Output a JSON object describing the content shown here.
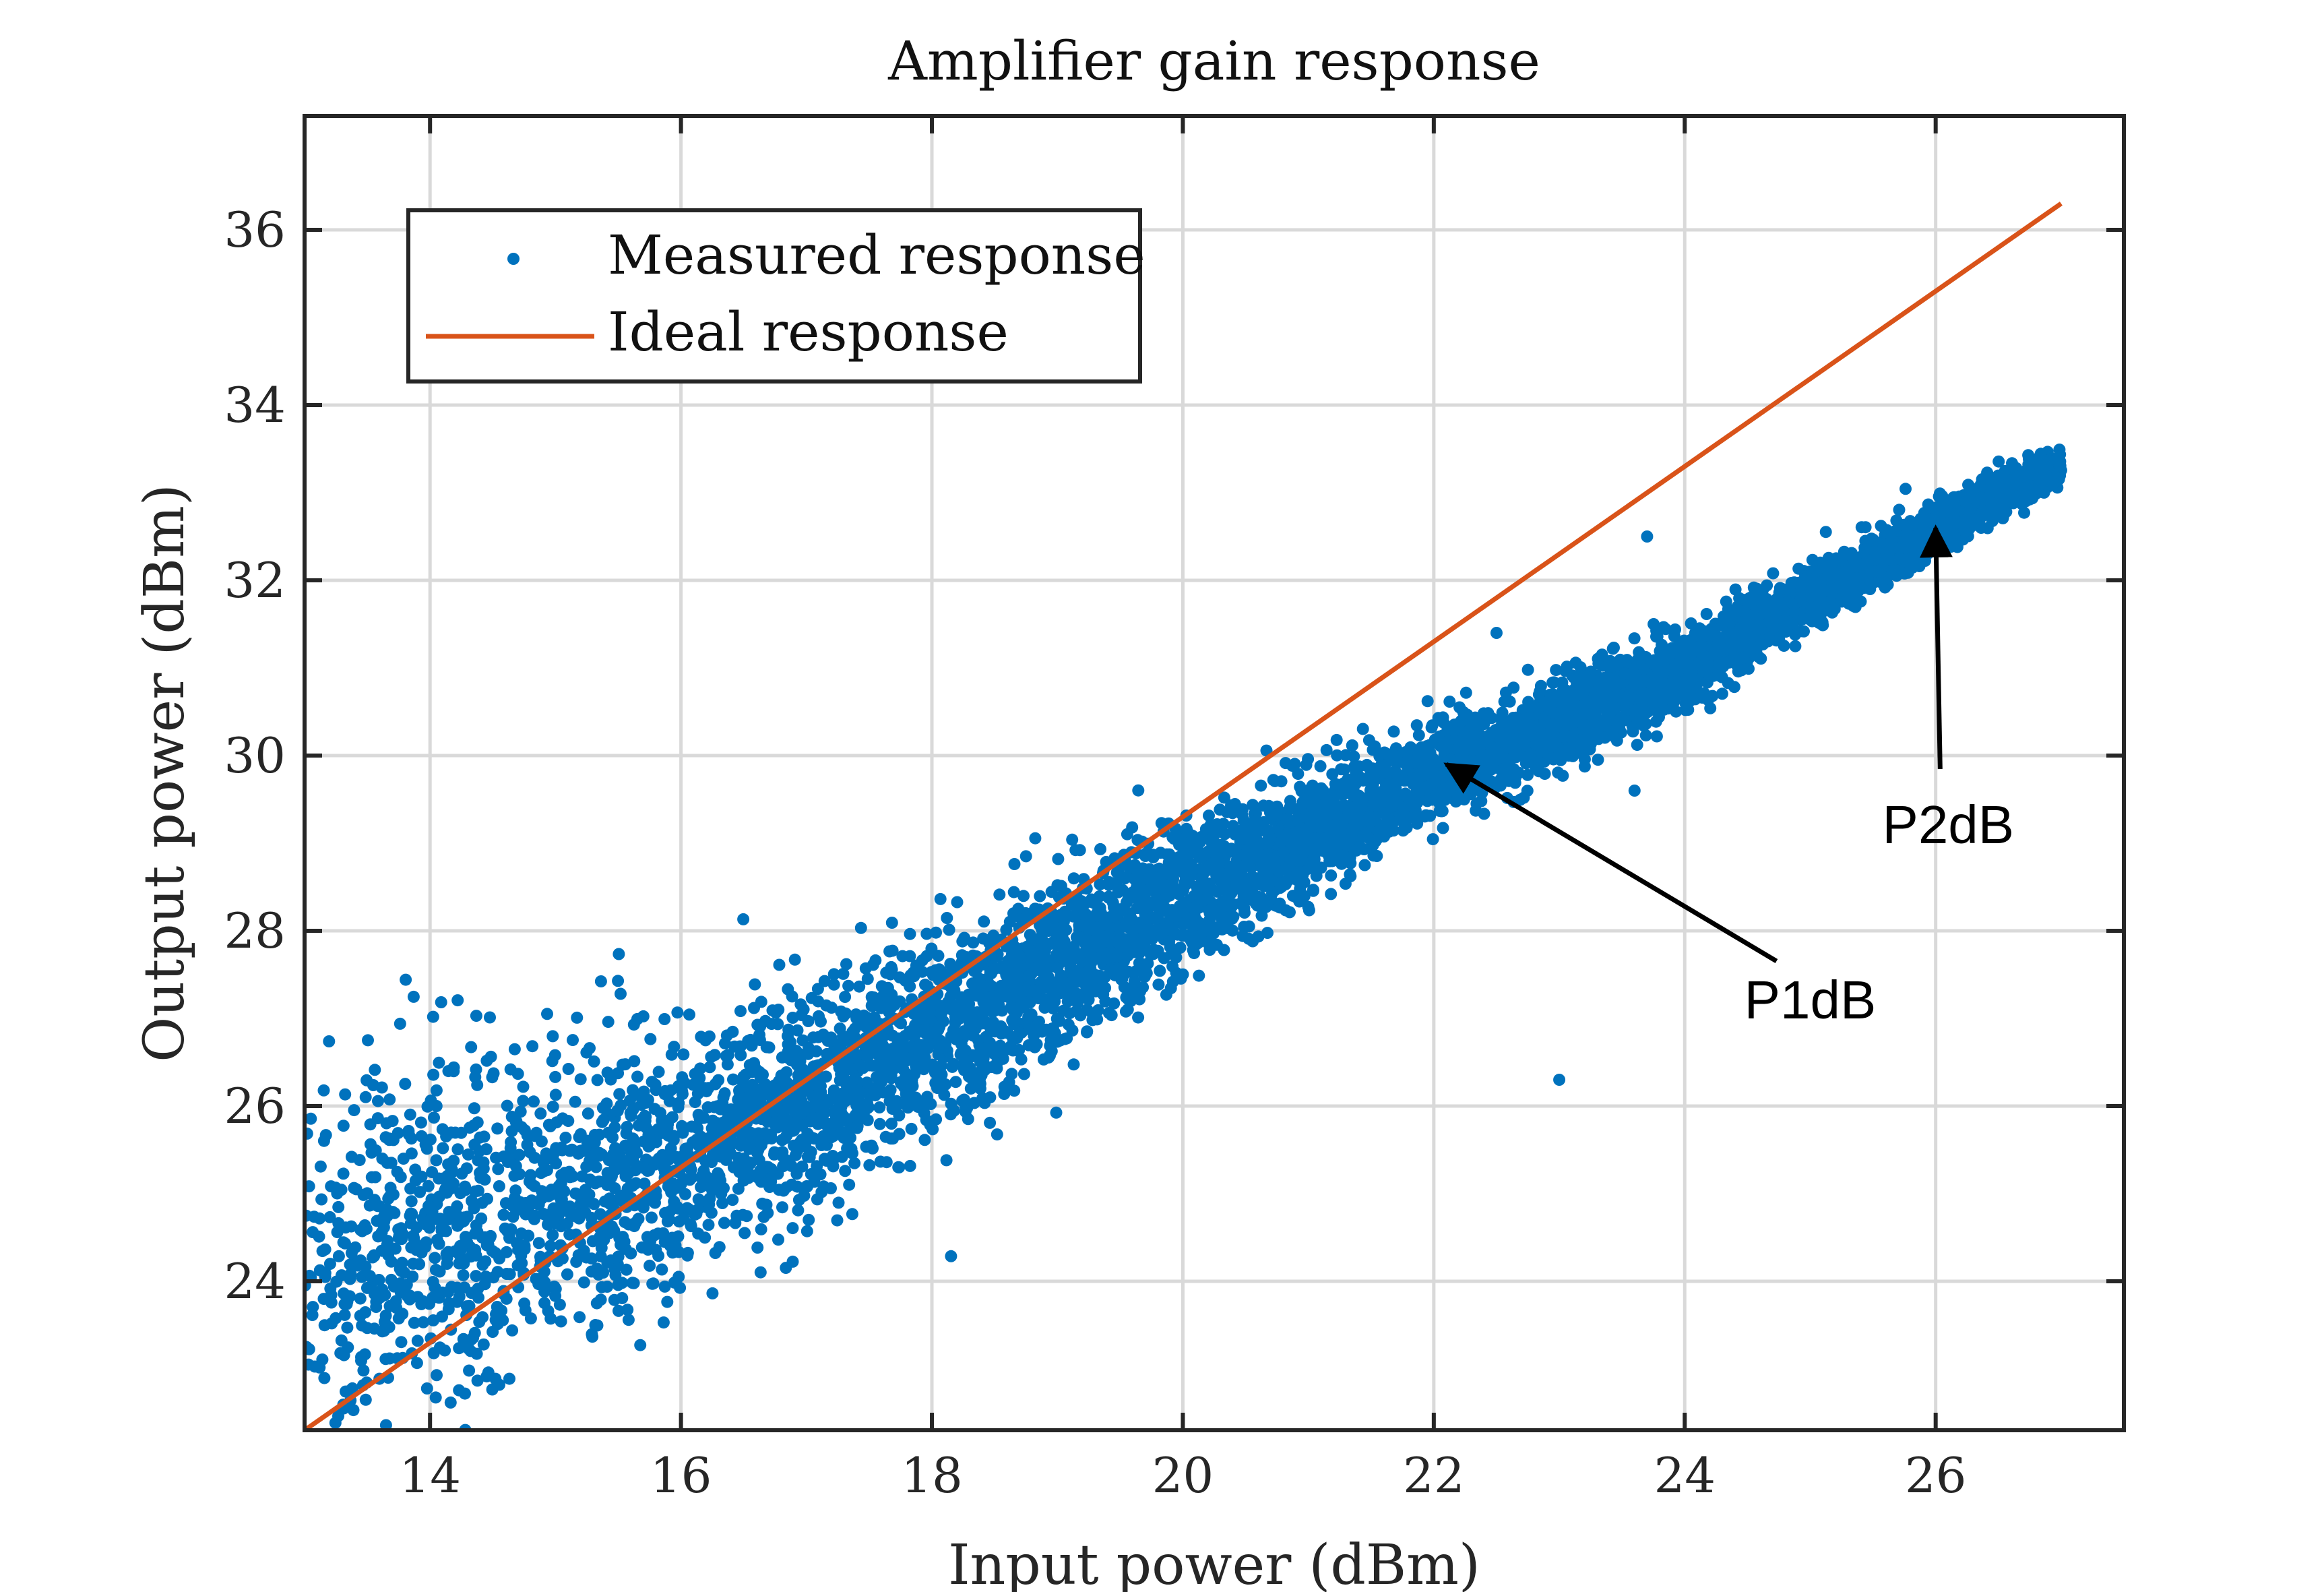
{
  "chart_data": {
    "type": "scatter",
    "title": "Amplifier gain response",
    "xlabel": "Input power (dBm)",
    "ylabel": "Output power (dBm)",
    "xlim": [
      13,
      27.5
    ],
    "ylim": [
      22.3,
      37.3
    ],
    "xticks": [
      14,
      16,
      18,
      20,
      22,
      24,
      26
    ],
    "yticks": [
      24,
      26,
      28,
      30,
      32,
      34,
      36
    ],
    "grid": true,
    "legend_position": "top-left",
    "series": [
      {
        "name": "Measured response",
        "kind": "scatter",
        "color": "#0072BD",
        "trend": [
          {
            "x": 13.0,
            "y": 23.9
          },
          {
            "x": 14.0,
            "y": 24.5
          },
          {
            "x": 16.0,
            "y": 25.4
          },
          {
            "x": 18.0,
            "y": 26.8
          },
          {
            "x": 20.0,
            "y": 28.4
          },
          {
            "x": 22.0,
            "y": 29.8
          },
          {
            "x": 24.0,
            "y": 31.0
          },
          {
            "x": 26.0,
            "y": 32.6
          },
          {
            "x": 27.0,
            "y": 33.3
          }
        ],
        "outliers": [
          {
            "x": 22.5,
            "y": 31.4
          },
          {
            "x": 23.6,
            "y": 29.6
          },
          {
            "x": 23.0,
            "y": 26.3
          },
          {
            "x": 23.7,
            "y": 32.5
          }
        ]
      },
      {
        "name": "Ideal response",
        "kind": "line",
        "color": "#D95319",
        "x": [
          13.0,
          27.0
        ],
        "y": [
          22.3,
          36.3
        ]
      }
    ],
    "annotations": [
      {
        "text": "P1dB",
        "x": 25.0,
        "y": 27.0,
        "arrow_to": {
          "x": 22.1,
          "y": 29.9
        }
      },
      {
        "text": "P2dB",
        "x": 26.1,
        "y": 29.0,
        "arrow_to": {
          "x": 26.0,
          "y": 32.6
        }
      }
    ]
  }
}
